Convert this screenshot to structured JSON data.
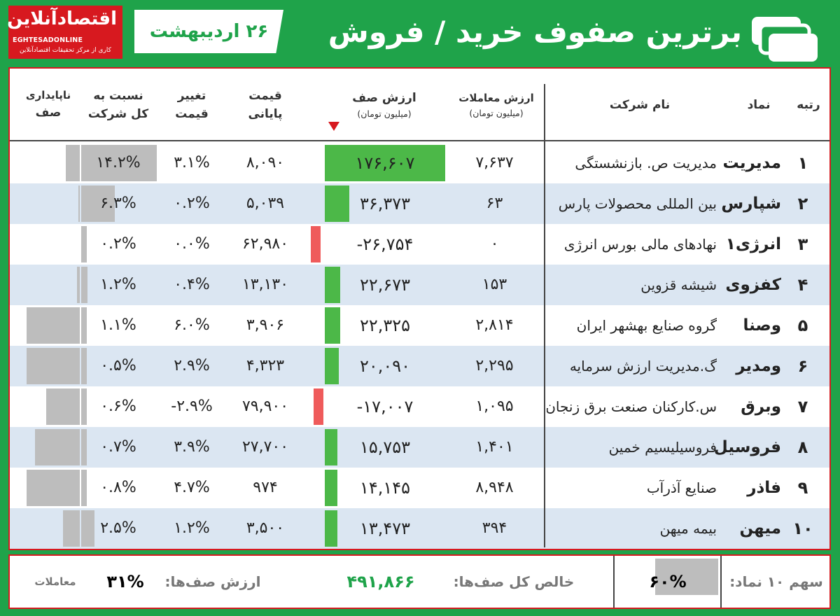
{
  "header": {
    "logo_fa": "اقتصادآنلاین",
    "logo_en": "EGHTESADONLINE",
    "logo_sub": "کاری از مرکز تحقیقات اقتصادآنلاین",
    "date": "۲۶ اردیبهشت",
    "title": "برترین صفوف خرید / فروش",
    "icon": "document-stack-icon"
  },
  "columns": {
    "rank": "رتبه",
    "symbol": "نماد",
    "name": "نام شرکت",
    "trade_value": "ارزش معاملات",
    "trade_value_unit": "(میلیون تومان)",
    "queue_value": "ارزش صف",
    "queue_value_unit": "(میلیون تومان)",
    "final_price_1": "قیمت",
    "final_price_2": "پایانی",
    "price_change_1": "تغییر",
    "price_change_2": "قیمت",
    "share_1": "نسبت به",
    "share_2": "کل شرکت",
    "instability_1": "ناپایداری",
    "instability_2": "صف"
  },
  "colors": {
    "buy": "#4cb848",
    "sell": "#ef5b5b",
    "neutral_bar": "#bdbdbd",
    "accent": "#1fa34a",
    "brand": "#d7191f"
  },
  "rows": [
    {
      "rank": "۱",
      "symbol": "مدیریت",
      "name": "مدیریت ص. بازنشستگی",
      "trade": "۷,۶۳۷",
      "queue": "۱۷۶,۶۰۷",
      "queue_num": 176607,
      "price": "۸,۰۹۰",
      "change": "۳.۱%",
      "share": "۱۴.۲%",
      "share_num": 14.2,
      "instability": 0.25
    },
    {
      "rank": "۲",
      "symbol": "شپارس",
      "name": "بین المللی محصولات پارس",
      "trade": "۶۳",
      "queue": "۳۶,۳۷۳",
      "queue_num": 36373,
      "price": "۵,۰۳۹",
      "change": "۰.۲%",
      "share": "۶.۳%",
      "share_num": 6.3,
      "instability": 0.02
    },
    {
      "rank": "۳",
      "symbol": "انرژی۱",
      "name": "نهادهای مالی بورس انرژی",
      "trade": "۰",
      "queue": "-۲۶,۷۵۴",
      "queue_num": -26754,
      "price": "۶۲,۹۸۰",
      "change": "۰.۰%",
      "share": "۰.۲%",
      "share_num": 0.2,
      "instability": 0
    },
    {
      "rank": "۴",
      "symbol": "کفزوی",
      "name": "شیشه قزوین",
      "trade": "۱۵۳",
      "queue": "۲۲,۶۷۳",
      "queue_num": 22673,
      "price": "۱۳,۱۳۰",
      "change": "۰.۴%",
      "share": "۱.۲%",
      "share_num": 1.2,
      "instability": 0.05
    },
    {
      "rank": "۵",
      "symbol": "وصنا",
      "name": "گروه صنایع بهشهر ایران",
      "trade": "۲,۸۱۴",
      "queue": "۲۲,۳۲۵",
      "queue_num": 22325,
      "price": "۳,۹۰۶",
      "change": "۶.۰%",
      "share": "۱.۱%",
      "share_num": 1.1,
      "instability": 0.95
    },
    {
      "rank": "۶",
      "symbol": "ومدیر",
      "name": "گ.مدیریت ارزش سرمایه",
      "trade": "۲,۲۹۵",
      "queue": "۲۰,۰۹۰",
      "queue_num": 20090,
      "price": "۴,۳۲۳",
      "change": "۲.۹%",
      "share": "۰.۵%",
      "share_num": 0.5,
      "instability": 0.95
    },
    {
      "rank": "۷",
      "symbol": "وبرق",
      "name": "س.کارکنان صنعت برق زنجان",
      "trade": "۱,۰۹۵",
      "queue": "-۱۷,۰۰۷",
      "queue_num": -17007,
      "price": "۷۹,۹۰۰",
      "change": "-۲.۹%",
      "share": "۰.۶%",
      "share_num": 0.6,
      "instability": 0.6
    },
    {
      "rank": "۸",
      "symbol": "فروسیل",
      "name": "فروسیلیسیم خمین",
      "trade": "۱,۴۰۱",
      "queue": "۱۵,۷۵۳",
      "queue_num": 15753,
      "price": "۲۷,۷۰۰",
      "change": "۳.۹%",
      "share": "۰.۷%",
      "share_num": 0.7,
      "instability": 0.8
    },
    {
      "rank": "۹",
      "symbol": "فاذر",
      "name": "صنایع آذرآب",
      "trade": "۸,۹۴۸",
      "queue": "۱۴,۱۴۵",
      "queue_num": 14145,
      "price": "۹۷۴",
      "change": "۴.۷%",
      "share": "۰.۸%",
      "share_num": 0.8,
      "instability": 0.95
    },
    {
      "rank": "۱۰",
      "symbol": "میهن",
      "name": "بیمه میهن",
      "trade": "۳۹۴",
      "queue": "۱۳,۴۷۳",
      "queue_num": 13473,
      "price": "۳,۵۰۰",
      "change": "۱.۲%",
      "share": "۲.۵%",
      "share_num": 2.5,
      "instability": 0.3
    }
  ],
  "footer": {
    "top10_label": "سهم ۱۰ نماد:",
    "top10_value": "۶۰%",
    "net_label": "خالص کل صف‌ها:",
    "net_value": "۴۹۱,۸۶۶",
    "queues_label": "ارزش صف‌ها:",
    "queues_pct": "۳۱%",
    "trades_label": "معاملات"
  }
}
